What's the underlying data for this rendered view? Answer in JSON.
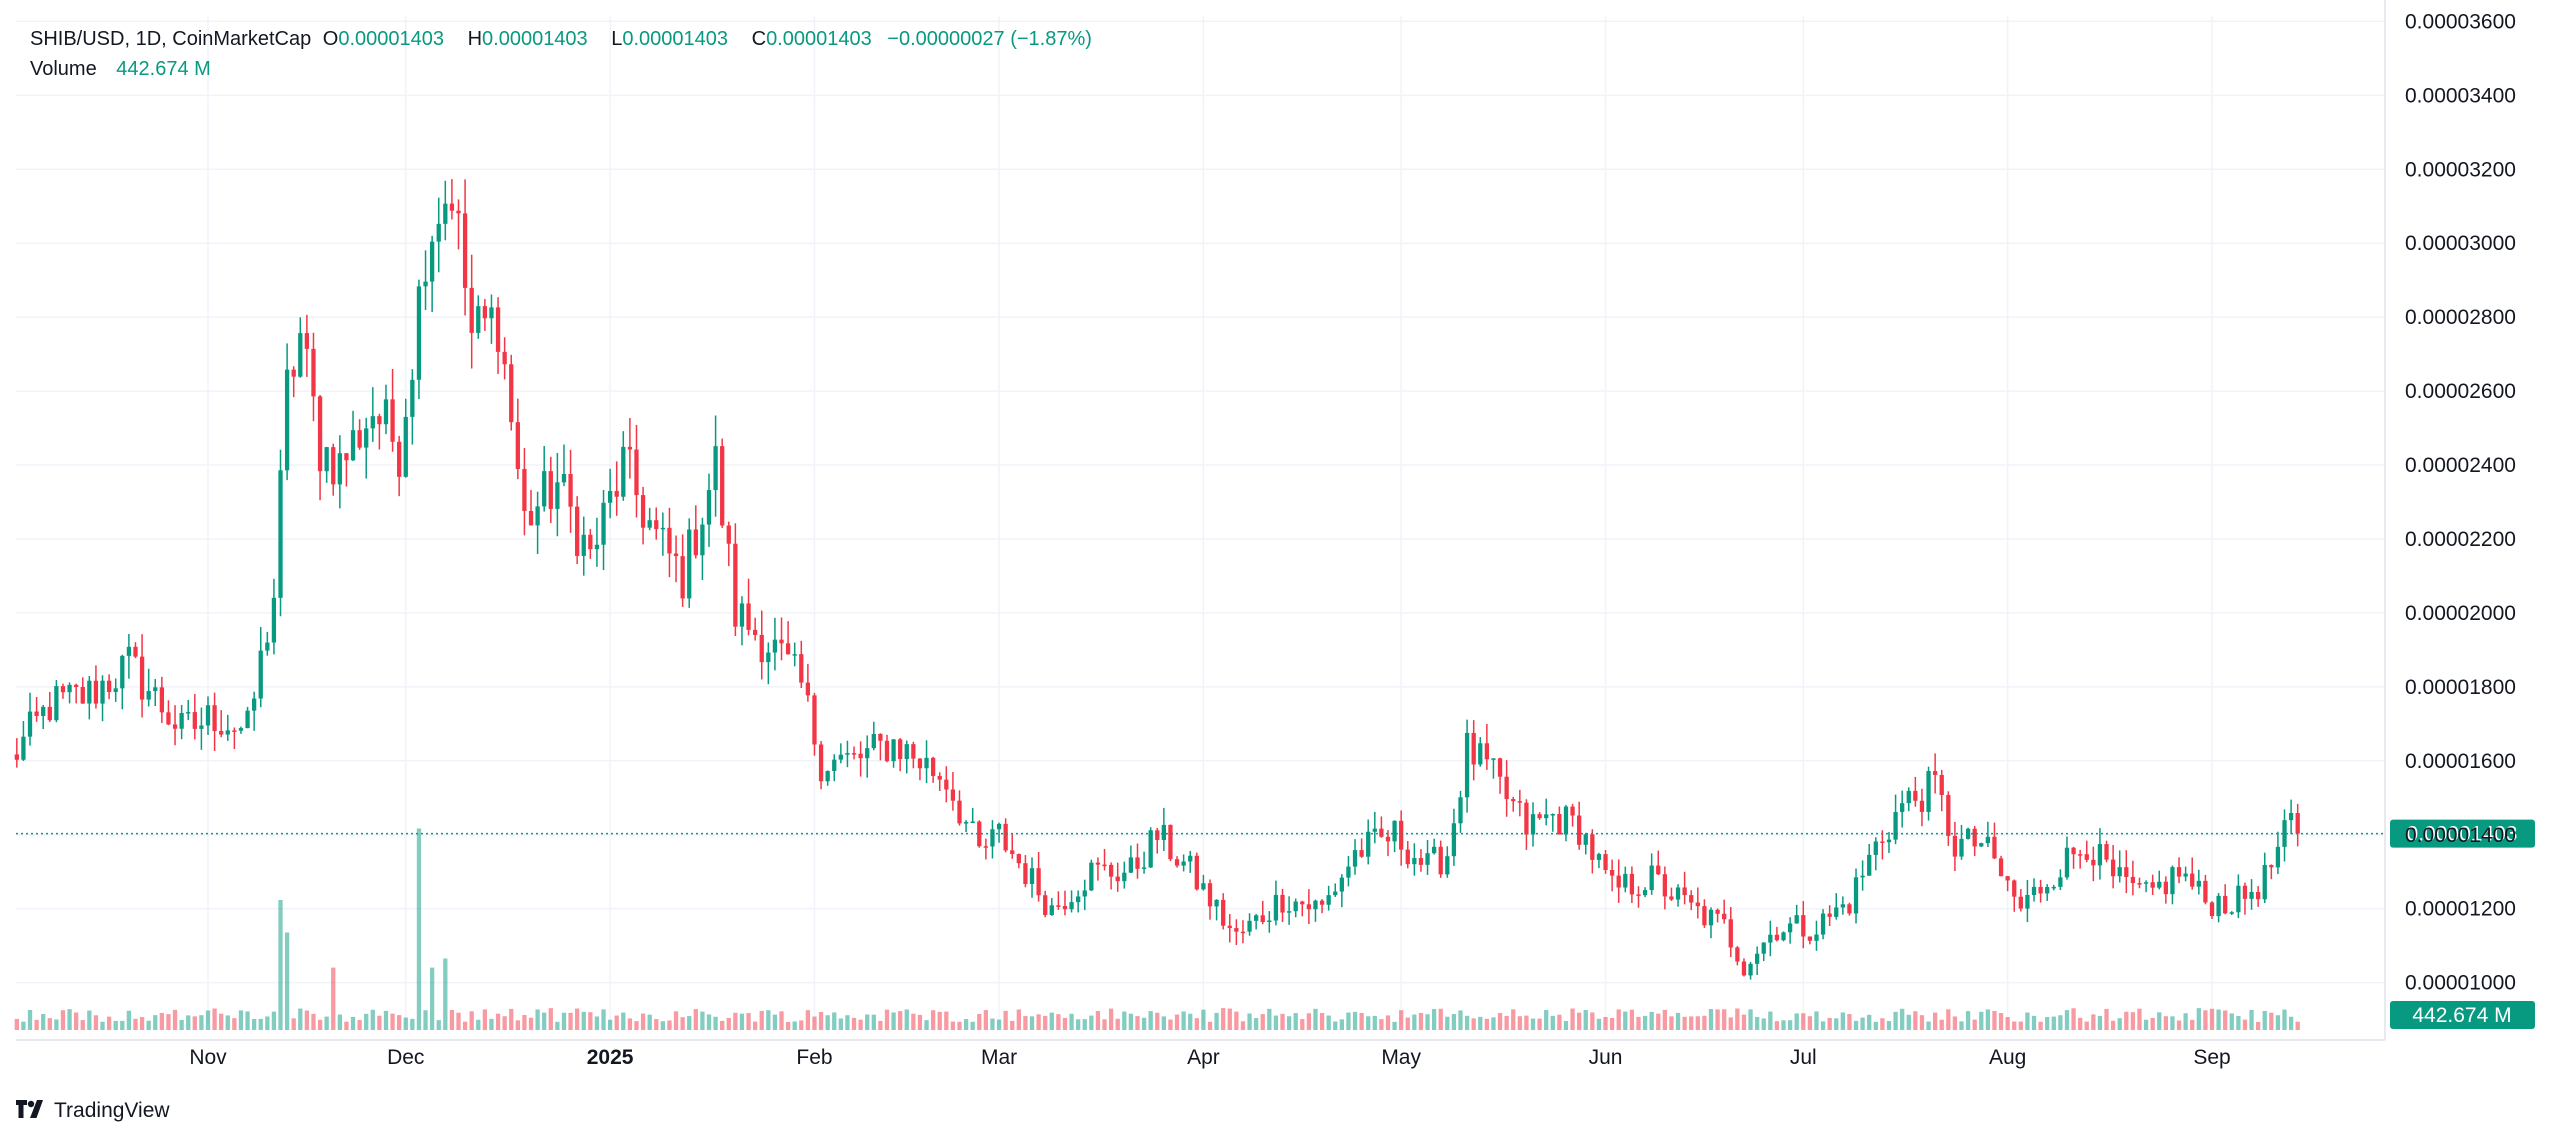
{
  "header": {
    "symbol": "SHIB/USD, 1D, CoinMarketCap",
    "o_label": "O",
    "o_value": "0.00001403",
    "h_label": "H",
    "h_value": "0.00001403",
    "l_label": "L",
    "l_value": "0.00001403",
    "c_label": "C",
    "c_value": "0.00001403",
    "change": "−0.00000027 (−1.87%)",
    "volume_label": "Volume",
    "volume_value": "442.674 M"
  },
  "branding": {
    "logo_icon": "tradingview-logo-icon",
    "text": "TradingView"
  },
  "colors": {
    "up": "#089981",
    "down": "#F23645",
    "grid": "#f0f3fa",
    "axis_text": "#131722"
  },
  "chart_data": {
    "type": "candlestick",
    "symbol": "SHIB/USD",
    "interval": "1D",
    "y_axis": {
      "ticks": [
        "0.00001000",
        "0.00001200",
        "0.00001400",
        "0.00001600",
        "0.00001800",
        "0.00002000",
        "0.00002200",
        "0.00002400",
        "0.00002600",
        "0.00002800",
        "0.00003000",
        "0.00003200",
        "0.00003400",
        "0.00003600"
      ],
      "ylim": [
        8.8e-06,
        3.62e-05
      ]
    },
    "x_axis": {
      "ticks": [
        "Nov",
        "Dec",
        "2025",
        "Feb",
        "Mar",
        "Apr",
        "May",
        "Jun",
        "Jul",
        "Aug",
        "Sep"
      ],
      "emphasized": "2025"
    },
    "last_price_label": "0.00001403",
    "last_volume_label": "442.674 M",
    "grid": true,
    "volume_pane": true,
    "anchors": [
      [
        "Oct 2",
        1.6e-05
      ],
      [
        "Oct 8",
        1.75e-05
      ],
      [
        "Oct 14",
        1.78e-05
      ],
      [
        "Oct 20",
        1.86e-05
      ],
      [
        "Oct 28",
        1.68e-05
      ],
      [
        "Nov 2",
        1.72e-05
      ],
      [
        "Nov 7",
        1.68e-05
      ],
      [
        "Nov 11",
        2.05e-05
      ],
      [
        "Nov 13",
        2.6e-05
      ],
      [
        "Nov 15",
        2.75e-05
      ],
      [
        "Nov 18",
        2.45e-05
      ],
      [
        "Nov 21",
        2.4e-05
      ],
      [
        "Nov 26",
        2.55e-05
      ],
      [
        "Nov 30",
        2.45e-05
      ],
      [
        "Dec 2",
        2.7e-05
      ],
      [
        "Dec 4",
        3e-05
      ],
      [
        "Dec 6",
        3.1e-05
      ],
      [
        "Dec 8",
        3.15e-05
      ],
      [
        "Dec 11",
        2.75e-05
      ],
      [
        "Dec 15",
        2.8e-05
      ],
      [
        "Dec 19",
        2.25e-05
      ],
      [
        "Dec 24",
        2.35e-05
      ],
      [
        "Dec 29",
        2.15e-05
      ],
      [
        "Jan 3",
        2.4e-05
      ],
      [
        "Jan 8",
        2.2e-05
      ],
      [
        "Jan 12",
        2.1e-05
      ],
      [
        "Jan 17",
        2.4e-05
      ],
      [
        "Jan 20",
        2e-05
      ],
      [
        "Jan 26",
        1.9e-05
      ],
      [
        "Jan 30",
        1.8e-05
      ],
      [
        "Feb 2",
        1.6e-05
      ],
      [
        "Feb 7",
        1.6e-05
      ],
      [
        "Feb 13",
        1.65e-05
      ],
      [
        "Feb 21",
        1.55e-05
      ],
      [
        "Feb 26",
        1.35e-05
      ],
      [
        "Mar 1",
        1.4e-05
      ],
      [
        "Mar 9",
        1.2e-05
      ],
      [
        "Mar 15",
        1.3e-05
      ],
      [
        "Mar 21",
        1.3e-05
      ],
      [
        "Mar 25",
        1.4e-05
      ],
      [
        "Mar 30",
        1.3e-05
      ],
      [
        "Apr 6",
        1.12e-05
      ],
      [
        "Apr 13",
        1.23e-05
      ],
      [
        "Apr 19",
        1.2e-05
      ],
      [
        "Apr 24",
        1.35e-05
      ],
      [
        "Apr 30",
        1.4e-05
      ],
      [
        "May 5",
        1.31e-05
      ],
      [
        "May 8",
        1.35e-05
      ],
      [
        "May 11",
        1.63e-05
      ],
      [
        "May 14",
        1.58e-05
      ],
      [
        "May 20",
        1.42e-05
      ],
      [
        "May 24",
        1.45e-05
      ],
      [
        "May 28",
        1.42e-05
      ],
      [
        "Jun 2",
        1.25e-05
      ],
      [
        "Jun 8",
        1.28e-05
      ],
      [
        "Jun 14",
        1.2e-05
      ],
      [
        "Jun 19",
        1.15e-05
      ],
      [
        "Jun 22",
        1.05e-05
      ],
      [
        "Jun 27",
        1.15e-05
      ],
      [
        "Jul 3",
        1.15e-05
      ],
      [
        "Jul 8",
        1.22e-05
      ],
      [
        "Jul 12",
        1.37e-05
      ],
      [
        "Jul 16",
        1.48e-05
      ],
      [
        "Jul 21",
        1.53e-05
      ],
      [
        "Jul 24",
        1.37e-05
      ],
      [
        "Jul 28",
        1.38e-05
      ],
      [
        "Aug 3",
        1.2e-05
      ],
      [
        "Aug 8",
        1.3e-05
      ],
      [
        "Aug 13",
        1.38e-05
      ],
      [
        "Aug 17",
        1.28e-05
      ],
      [
        "Aug 22",
        1.23e-05
      ],
      [
        "Aug 27",
        1.3e-05
      ],
      [
        "Aug 31",
        1.22e-05
      ],
      [
        "Sep 5",
        1.22e-05
      ],
      [
        "Sep 9",
        1.28e-05
      ],
      [
        "Sep 13",
        1.43e-05
      ],
      [
        "Sep 14",
        1.403e-05
      ]
    ],
    "volume_spikes": [
      [
        "Nov 12",
        1.0
      ],
      [
        "Nov 13",
        0.75
      ],
      [
        "Nov 20",
        0.48
      ],
      [
        "Dec 3",
        1.55
      ],
      [
        "Dec 5",
        0.48
      ],
      [
        "Dec 7",
        0.55
      ]
    ],
    "last": {
      "date": "Sep 14",
      "open": 1.403e-05,
      "high": 1.403e-05,
      "low": 1.403e-05,
      "close": 1.403e-05,
      "change": -2.7e-07,
      "change_pct": -1.87
    }
  }
}
